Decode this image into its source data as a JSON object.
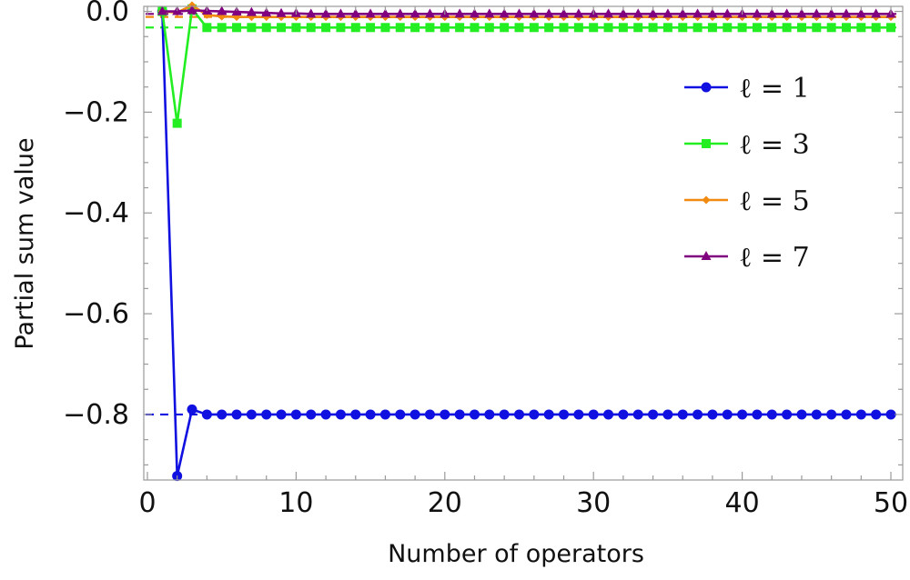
{
  "chart_data": {
    "type": "line",
    "title": "",
    "xlabel": "Number of operators",
    "ylabel": "Partial sum value",
    "xlim": [
      0,
      50
    ],
    "ylim": [
      -0.93,
      0.01
    ],
    "xticks": [
      0,
      10,
      20,
      30,
      40,
      50
    ],
    "xtick_labels": [
      "0",
      "10",
      "20",
      "30",
      "40",
      "50"
    ],
    "yticks": [
      0.0,
      -0.2,
      -0.4,
      -0.6,
      -0.8
    ],
    "ytick_labels": [
      "0.0",
      "−0.2",
      "−0.4",
      "−0.6",
      "−0.8"
    ],
    "grid": false,
    "legend_position": "top-right",
    "series": [
      {
        "name": "ℓ = 1",
        "color": "#1010e0",
        "marker": "circle",
        "limit": -0.8,
        "x": [
          1,
          2,
          3,
          4,
          5,
          6,
          7,
          8,
          9,
          10,
          11,
          12,
          13,
          14,
          15,
          16,
          17,
          18,
          19,
          20,
          21,
          22,
          23,
          24,
          25,
          26,
          27,
          28,
          29,
          30,
          31,
          32,
          33,
          34,
          35,
          36,
          37,
          38,
          39,
          40,
          41,
          42,
          43,
          44,
          45,
          46,
          47,
          48,
          49,
          50
        ],
        "y": [
          0.0,
          -0.922,
          -0.79,
          -0.8,
          -0.8,
          -0.8,
          -0.8,
          -0.8,
          -0.8,
          -0.8,
          -0.8,
          -0.8,
          -0.8,
          -0.8,
          -0.8,
          -0.8,
          -0.8,
          -0.8,
          -0.8,
          -0.8,
          -0.8,
          -0.8,
          -0.8,
          -0.8,
          -0.8,
          -0.8,
          -0.8,
          -0.8,
          -0.8,
          -0.8,
          -0.8,
          -0.8,
          -0.8,
          -0.8,
          -0.8,
          -0.8,
          -0.8,
          -0.8,
          -0.8,
          -0.8,
          -0.8,
          -0.8,
          -0.8,
          -0.8,
          -0.8,
          -0.8,
          -0.8,
          -0.8,
          -0.8,
          -0.8
        ]
      },
      {
        "name": "ℓ = 3",
        "color": "#22ee22",
        "marker": "square",
        "limit": -0.032,
        "x": [
          1,
          2,
          3,
          4,
          5,
          6,
          7,
          8,
          9,
          10,
          11,
          12,
          13,
          14,
          15,
          16,
          17,
          18,
          19,
          20,
          21,
          22,
          23,
          24,
          25,
          26,
          27,
          28,
          29,
          30,
          31,
          32,
          33,
          34,
          35,
          36,
          37,
          38,
          39,
          40,
          41,
          42,
          43,
          44,
          45,
          46,
          47,
          48,
          49,
          50
        ],
        "y": [
          0.0,
          -0.222,
          0.005,
          -0.032,
          -0.032,
          -0.032,
          -0.032,
          -0.032,
          -0.032,
          -0.032,
          -0.032,
          -0.032,
          -0.032,
          -0.032,
          -0.032,
          -0.032,
          -0.032,
          -0.032,
          -0.032,
          -0.032,
          -0.032,
          -0.032,
          -0.032,
          -0.032,
          -0.032,
          -0.032,
          -0.032,
          -0.032,
          -0.032,
          -0.032,
          -0.032,
          -0.032,
          -0.032,
          -0.032,
          -0.032,
          -0.032,
          -0.032,
          -0.032,
          -0.032,
          -0.032,
          -0.032,
          -0.032,
          -0.032,
          -0.032,
          -0.032,
          -0.032,
          -0.032,
          -0.032,
          -0.032,
          -0.032
        ]
      },
      {
        "name": "ℓ = 5",
        "color": "#f08a10",
        "marker": "diamond",
        "limit": -0.011,
        "x": [
          1,
          2,
          3,
          4,
          5,
          6,
          7,
          8,
          9,
          10,
          11,
          12,
          13,
          14,
          15,
          16,
          17,
          18,
          19,
          20,
          21,
          22,
          23,
          24,
          25,
          26,
          27,
          28,
          29,
          30,
          31,
          32,
          33,
          34,
          35,
          36,
          37,
          38,
          39,
          40,
          41,
          42,
          43,
          44,
          45,
          46,
          47,
          48,
          49,
          50
        ],
        "y": [
          0.0,
          -0.002,
          0.012,
          -0.007,
          -0.01,
          -0.011,
          -0.011,
          -0.011,
          -0.011,
          -0.011,
          -0.011,
          -0.011,
          -0.011,
          -0.011,
          -0.011,
          -0.011,
          -0.011,
          -0.011,
          -0.011,
          -0.011,
          -0.011,
          -0.011,
          -0.011,
          -0.011,
          -0.011,
          -0.011,
          -0.011,
          -0.011,
          -0.011,
          -0.011,
          -0.011,
          -0.011,
          -0.011,
          -0.011,
          -0.011,
          -0.011,
          -0.011,
          -0.011,
          -0.011,
          -0.011,
          -0.011,
          -0.011,
          -0.011,
          -0.011,
          -0.011,
          -0.011,
          -0.011,
          -0.011,
          -0.011,
          -0.011
        ]
      },
      {
        "name": "ℓ = 7",
        "color": "#800080",
        "marker": "triangle",
        "limit": -0.005,
        "x": [
          1,
          2,
          3,
          4,
          5,
          6,
          7,
          8,
          9,
          10,
          11,
          12,
          13,
          14,
          15,
          16,
          17,
          18,
          19,
          20,
          21,
          22,
          23,
          24,
          25,
          26,
          27,
          28,
          29,
          30,
          31,
          32,
          33,
          34,
          35,
          36,
          37,
          38,
          39,
          40,
          41,
          42,
          43,
          44,
          45,
          46,
          47,
          48,
          49,
          50
        ],
        "y": [
          0.0,
          0.0,
          0.002,
          0.001,
          0.0,
          -0.001,
          -0.002,
          -0.003,
          -0.004,
          -0.004,
          -0.005,
          -0.005,
          -0.005,
          -0.005,
          -0.005,
          -0.005,
          -0.005,
          -0.005,
          -0.005,
          -0.005,
          -0.005,
          -0.005,
          -0.005,
          -0.005,
          -0.005,
          -0.005,
          -0.005,
          -0.005,
          -0.005,
          -0.005,
          -0.005,
          -0.005,
          -0.005,
          -0.005,
          -0.005,
          -0.005,
          -0.005,
          -0.005,
          -0.005,
          -0.005,
          -0.005,
          -0.005,
          -0.005,
          -0.005,
          -0.005,
          -0.005,
          -0.005,
          -0.005,
          -0.005,
          -0.005
        ]
      }
    ]
  }
}
